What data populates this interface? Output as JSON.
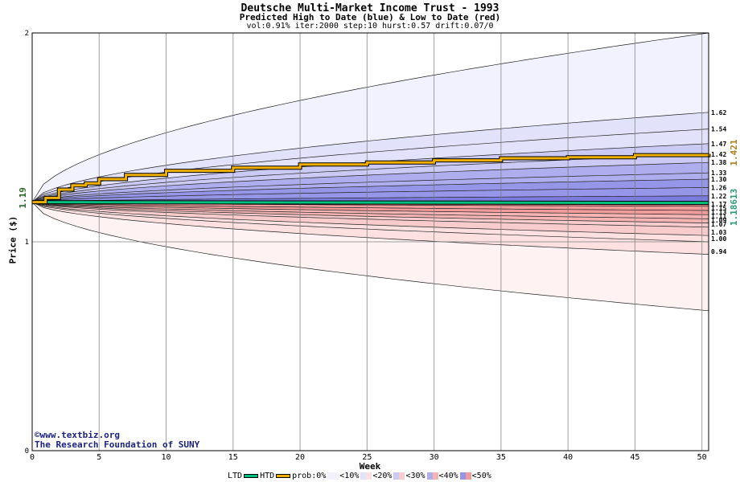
{
  "chart_data": {
    "type": "area",
    "title": "Deutsche Multi-Market Income Trust - 1993",
    "subtitle": "Predicted High to Date (blue) &  Low to Date (red)",
    "params": "vol:0.91% iter:2000 step:10 hurst:0.57 drift:0.07/0",
    "xlabel": "Week",
    "ylabel": "Price ($)",
    "xlim": [
      0,
      50.5
    ],
    "ylim": [
      0,
      2
    ],
    "x_ticks": [
      "0",
      "5",
      "10",
      "15",
      "20",
      "25",
      "30",
      "35",
      "40",
      "45",
      "50"
    ],
    "y_ticks": [
      "0",
      "1",
      "2"
    ],
    "start_price_label": "1.19",
    "start_price": 1.19,
    "htd_value": 1.421,
    "htd_value_label": "1.421",
    "ltd_value": 1.18613,
    "ltd_value_label": "1.18613",
    "upper_band_end_labels": [
      "1.62",
      "1.54",
      "1.47",
      "1.42",
      "1.38",
      "1.33",
      "1.30",
      "1.26",
      "1.22"
    ],
    "upper_band_end_values": [
      1.62,
      1.54,
      1.47,
      1.42,
      1.38,
      1.33,
      1.3,
      1.26,
      1.22
    ],
    "lower_band_end_labels": [
      "1.17",
      "1.15",
      "1.13",
      "1.11",
      "1.09",
      "1.07",
      "1.03",
      "1.00",
      "0.94"
    ],
    "lower_band_end_values": [
      1.17,
      1.15,
      1.13,
      1.11,
      1.09,
      1.07,
      1.03,
      1.0,
      0.94
    ],
    "upper_outer_end": 2.0,
    "lower_outer_end": 0.67,
    "htd_series": [
      {
        "x": 0,
        "y": 1.19
      },
      {
        "x": 1,
        "y": 1.21
      },
      {
        "x": 2,
        "y": 1.25
      },
      {
        "x": 3,
        "y": 1.27
      },
      {
        "x": 4,
        "y": 1.28
      },
      {
        "x": 5,
        "y": 1.3
      },
      {
        "x": 7,
        "y": 1.32
      },
      {
        "x": 10,
        "y": 1.34
      },
      {
        "x": 15,
        "y": 1.355
      },
      {
        "x": 20,
        "y": 1.37
      },
      {
        "x": 25,
        "y": 1.38
      },
      {
        "x": 30,
        "y": 1.39
      },
      {
        "x": 35,
        "y": 1.4
      },
      {
        "x": 40,
        "y": 1.405
      },
      {
        "x": 45,
        "y": 1.415
      },
      {
        "x": 50.5,
        "y": 1.421
      }
    ],
    "ltd_series": [
      {
        "x": 0,
        "y": 1.19
      },
      {
        "x": 50.5,
        "y": 1.186
      }
    ]
  },
  "credit": {
    "url": "©www.textbiz.org",
    "org": "The Research Foundation of SUNY"
  },
  "legend": {
    "ltd": "LTD",
    "htd": "HTD",
    "prob": "prob:0%",
    "p10": "<10%",
    "p20": "<20%",
    "p30": "<30%",
    "p40": "<40%",
    "p50": "<50%"
  },
  "colors": {
    "htd": "#f0b000",
    "ltd": "#00c080",
    "htd_label": "#b08020",
    "ltd_label": "#2a9a7a",
    "blue_bands": [
      "#f2f2ff",
      "#e2e2fb",
      "#cacaf4",
      "#aeaeee",
      "#9696e8",
      "#7c7ce0"
    ],
    "red_bands": [
      "#fff2f2",
      "#fde0e0",
      "#f8cccc",
      "#f4b4b4",
      "#f09c9c",
      "#ec8484"
    ]
  }
}
